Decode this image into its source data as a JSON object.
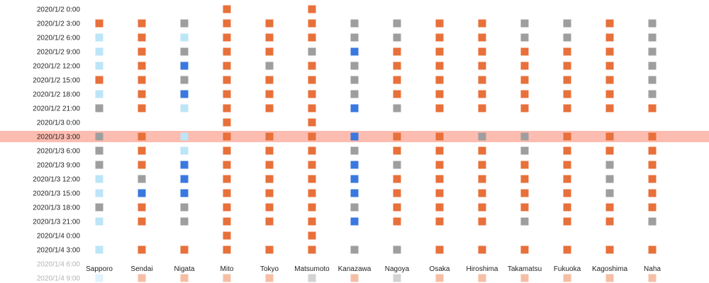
{
  "chart_data": {
    "type": "heatmap",
    "title": "",
    "xlabel": "",
    "ylabel": "",
    "cities": [
      "Sapporo",
      "Sendai",
      "Nigata",
      "Mito",
      "Tokyo",
      "Matsumoto",
      "Kanazawa",
      "Nagoya",
      "Osaka",
      "Hiroshima",
      "Takamatsu",
      "Fukuoka",
      "Kagoshima",
      "Naha"
    ],
    "times": [
      "2020/1/2 0:00",
      "2020/1/2 3:00",
      "2020/1/2 6:00",
      "2020/1/2 9:00",
      "2020/1/2 12:00",
      "2020/1/2 15:00",
      "2020/1/2 18:00",
      "2020/1/2 21:00",
      "2020/1/3 0:00",
      "2020/1/3 3:00",
      "2020/1/3 6:00",
      "2020/1/3 9:00",
      "2020/1/3 12:00",
      "2020/1/3 15:00",
      "2020/1/3 18:00",
      "2020/1/3 21:00",
      "2020/1/4 0:00",
      "2020/1/4 3:00",
      "2020/1/4 6:00",
      "2020/1/4 9:00"
    ],
    "highlighted_time": "2020/1/3 3:00",
    "faded_times": [
      "2020/1/4 6:00",
      "2020/1/4 9:00"
    ],
    "category_colors": {
      "O": "#e8703a",
      "G": "#9e9e9e",
      "L": "#bde5f8",
      "B": "#3a78e0"
    },
    "highlight_color": "#fdbcb0",
    "grid": [
      "...O.O........",
      "OOGOOOGGOOGGOG",
      "LOLOOOGGOOGGOG",
      "LOGOOGBOOOOOOG",
      "LOBOGOGOOOOOOG",
      "OOGOOOGOOOOOOG",
      "LOBOOOGOOOOOOG",
      "GOLOOOBGOOOOOO",
      "...O.O........",
      "GOLOOOBOOGGOOO",
      "GOLOOOGOOOGOOO",
      "GOBOOOBGOOOOGO",
      "LGBOOOBOOOOOGO",
      "LBBOOOBOOOOOGO",
      "GOGOOOGOOOOOOO",
      "LOGOOOBOOOGOOG",
      "...O.O........",
      "LOOOOOGGOOOOOO",
      "..............",
      "LOOOOGOGOOOOOO"
    ]
  }
}
